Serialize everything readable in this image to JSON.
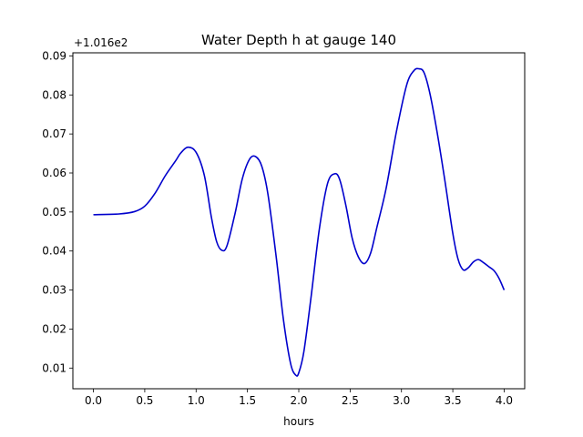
{
  "chart_data": {
    "type": "line",
    "title": "Water Depth h at gauge 140",
    "xlabel": "hours",
    "ylabel": "",
    "offset_text": "+1.016e2",
    "xlim": [
      -0.2,
      4.2
    ],
    "ylim": [
      0.0047,
      0.0908
    ],
    "xticks": [
      0.0,
      0.5,
      1.0,
      1.5,
      2.0,
      2.5,
      3.0,
      3.5,
      4.0
    ],
    "xtick_labels": [
      "0.0",
      "0.5",
      "1.0",
      "1.5",
      "2.0",
      "2.5",
      "3.0",
      "3.5",
      "4.0"
    ],
    "yticks": [
      0.01,
      0.02,
      0.03,
      0.04,
      0.05,
      0.06,
      0.07,
      0.08,
      0.09
    ],
    "ytick_labels": [
      "0.01",
      "0.02",
      "0.03",
      "0.04",
      "0.05",
      "0.06",
      "0.07",
      "0.08",
      "0.09"
    ],
    "grid": false,
    "series": [
      {
        "color": "#0000cc",
        "x": [
          0.0,
          0.25,
          0.4,
          0.5,
          0.6,
          0.7,
          0.8,
          0.85,
          0.92,
          1.0,
          1.08,
          1.15,
          1.2,
          1.25,
          1.3,
          1.38,
          1.45,
          1.52,
          1.58,
          1.64,
          1.7,
          1.78,
          1.85,
          1.92,
          1.97,
          2.0,
          2.05,
          2.12,
          2.2,
          2.28,
          2.35,
          2.4,
          2.46,
          2.52,
          2.58,
          2.64,
          2.7,
          2.76,
          2.85,
          2.95,
          3.05,
          3.12,
          3.17,
          3.22,
          3.28,
          3.35,
          3.42,
          3.5,
          3.55,
          3.6,
          3.65,
          3.7,
          3.75,
          3.8,
          3.85,
          3.9,
          3.95,
          4.0
        ],
        "values": [
          0.0493,
          0.0495,
          0.0501,
          0.0515,
          0.0548,
          0.0593,
          0.0631,
          0.0651,
          0.0666,
          0.0653,
          0.0594,
          0.0485,
          0.0424,
          0.0402,
          0.0413,
          0.0497,
          0.0585,
          0.0635,
          0.0642,
          0.0617,
          0.0545,
          0.0385,
          0.0225,
          0.0112,
          0.0082,
          0.0088,
          0.0143,
          0.0283,
          0.0456,
          0.0573,
          0.0598,
          0.0582,
          0.0515,
          0.0433,
          0.0385,
          0.0368,
          0.0395,
          0.046,
          0.056,
          0.0705,
          0.0825,
          0.0862,
          0.0867,
          0.0857,
          0.08,
          0.07,
          0.0585,
          0.0445,
          0.038,
          0.0352,
          0.0357,
          0.0372,
          0.0378,
          0.037,
          0.036,
          0.035,
          0.033,
          0.03
        ]
      }
    ]
  }
}
